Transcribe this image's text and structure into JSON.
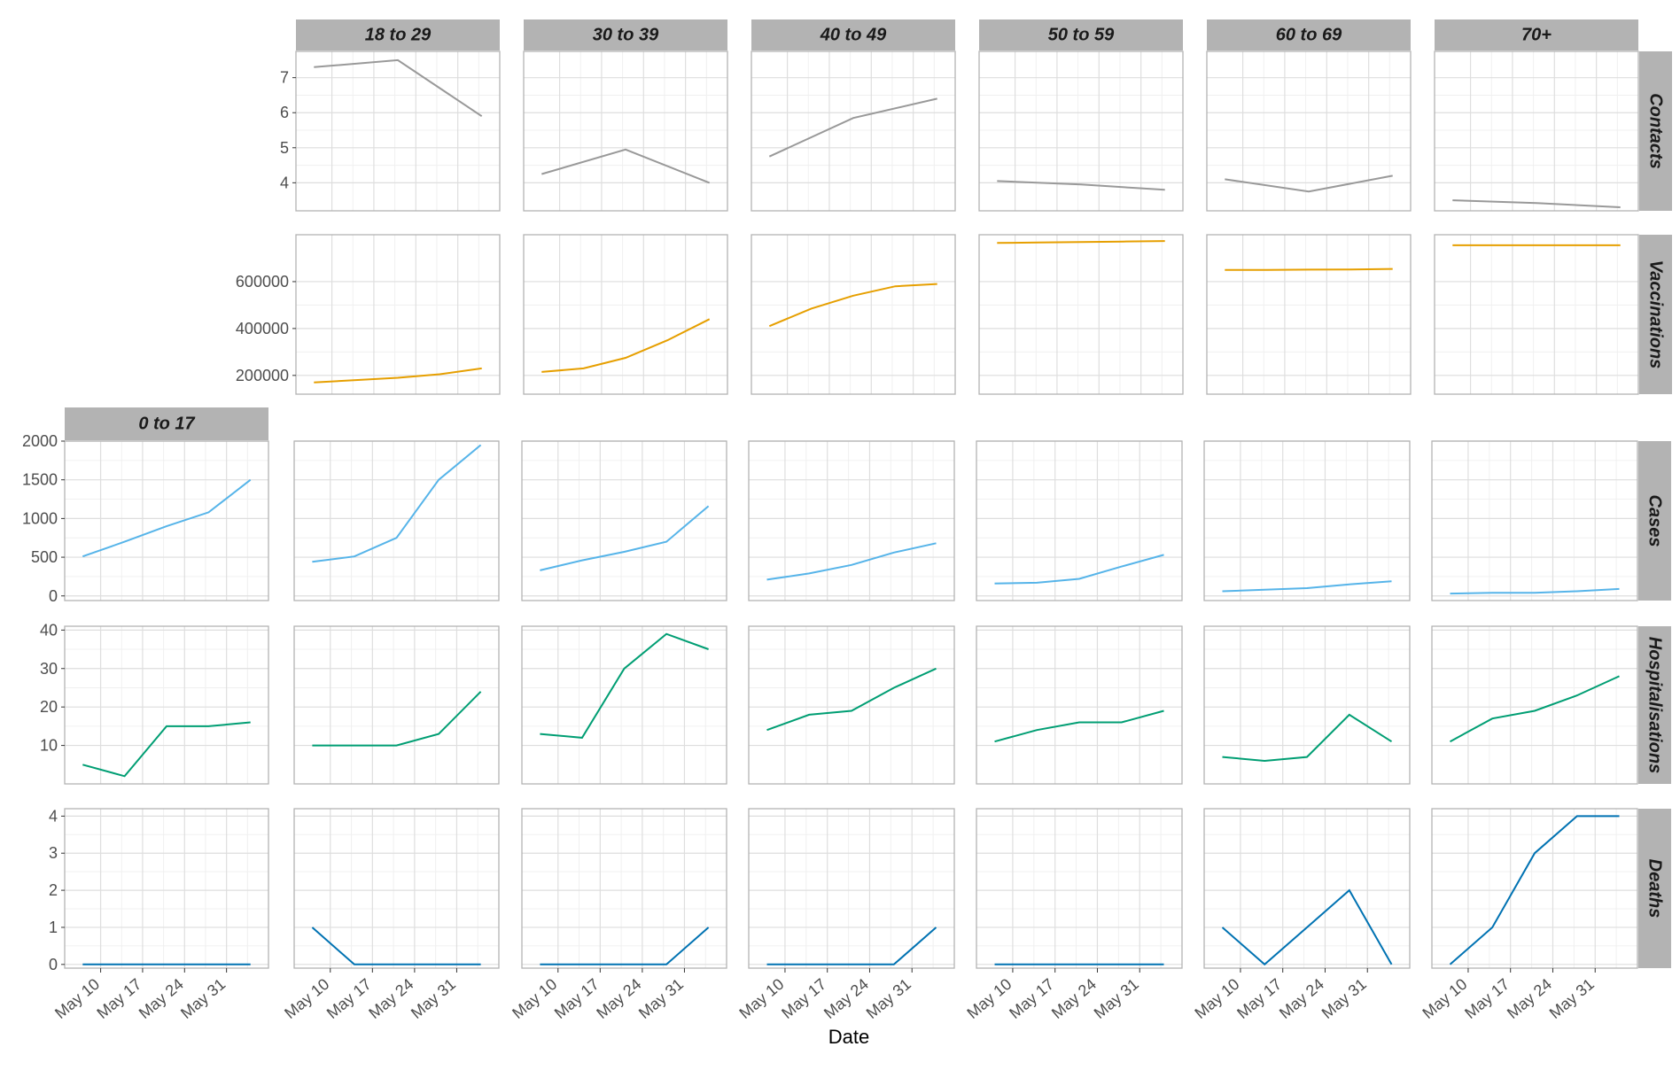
{
  "chart_data": {
    "type": "line",
    "xlabel": "Date",
    "x_dates": [
      "May 7",
      "May 14",
      "May 21",
      "May 28",
      "Jun 4"
    ],
    "x_ticks": [
      "May 10",
      "May 17",
      "May 24",
      "May 31"
    ],
    "age_groups": [
      "0 to 17",
      "18 to 29",
      "30 to 39",
      "40 to 49",
      "50 to 59",
      "60 to 69",
      "70+"
    ],
    "metrics": [
      {
        "name": "Contacts",
        "color": "#999999",
        "ylim": [
          3.2,
          7.75
        ],
        "ticks": [
          4,
          5,
          6,
          7
        ],
        "tick_labels": [
          "4",
          "5",
          "6",
          "7"
        ],
        "panels": [
          null,
          {
            "x": [
              0,
              14,
              28
            ],
            "y": [
              7.3,
              7.5,
              5.9
            ]
          },
          {
            "x": [
              0,
              14,
              28
            ],
            "y": [
              4.25,
              4.95,
              4.0
            ]
          },
          {
            "x": [
              0,
              14,
              28
            ],
            "y": [
              4.75,
              5.85,
              6.4
            ]
          },
          {
            "x": [
              0,
              14,
              28
            ],
            "y": [
              4.05,
              3.95,
              3.8
            ]
          },
          {
            "x": [
              0,
              14,
              28
            ],
            "y": [
              4.1,
              3.75,
              4.2
            ]
          },
          {
            "x": [
              0,
              14,
              28
            ],
            "y": [
              3.5,
              3.42,
              3.3
            ]
          }
        ]
      },
      {
        "name": "Vaccinations",
        "color": "#E69F00",
        "ylim": [
          120000,
          800000
        ],
        "ticks": [
          200000,
          400000,
          600000
        ],
        "tick_labels": [
          "200000",
          "400000",
          "600000"
        ],
        "panels": [
          null,
          {
            "x": [
              0,
              7,
              14,
              21,
              28
            ],
            "y": [
              170000,
              180000,
              190000,
              205000,
              230000
            ]
          },
          {
            "x": [
              0,
              7,
              14,
              21,
              28
            ],
            "y": [
              215000,
              230000,
              275000,
              350000,
              440000
            ]
          },
          {
            "x": [
              0,
              7,
              14,
              21,
              28
            ],
            "y": [
              410000,
              485000,
              540000,
              580000,
              590000
            ]
          },
          {
            "x": [
              0,
              7,
              14,
              21,
              28
            ],
            "y": [
              765000,
              767000,
              769000,
              771000,
              773000
            ]
          },
          {
            "x": [
              0,
              7,
              14,
              21,
              28
            ],
            "y": [
              650000,
              650000,
              651000,
              652000,
              654000
            ]
          },
          {
            "x": [
              0,
              7,
              14,
              21,
              28
            ],
            "y": [
              755000,
              755000,
              755000,
              755000,
              755000
            ]
          }
        ]
      },
      {
        "name": "Cases",
        "color": "#56B4E9",
        "ylim": [
          -60,
          2000
        ],
        "ticks": [
          0,
          500,
          1000,
          1500,
          2000
        ],
        "tick_labels": [
          "0",
          "500",
          "1000",
          "1500",
          "2000"
        ],
        "panels": [
          {
            "x": [
              0,
              7,
              14,
              21,
              28
            ],
            "y": [
              510,
              700,
              900,
              1080,
              1500
            ]
          },
          {
            "x": [
              0,
              7,
              14,
              21,
              28
            ],
            "y": [
              440,
              510,
              750,
              1500,
              1950
            ]
          },
          {
            "x": [
              0,
              7,
              14,
              21,
              28
            ],
            "y": [
              330,
              460,
              570,
              700,
              1160
            ]
          },
          {
            "x": [
              0,
              7,
              14,
              21,
              28
            ],
            "y": [
              210,
              290,
              400,
              560,
              680
            ]
          },
          {
            "x": [
              0,
              7,
              14,
              21,
              28
            ],
            "y": [
              160,
              170,
              220,
              380,
              530
            ]
          },
          {
            "x": [
              0,
              7,
              14,
              21,
              28
            ],
            "y": [
              60,
              80,
              100,
              150,
              190
            ]
          },
          {
            "x": [
              0,
              7,
              14,
              21,
              28
            ],
            "y": [
              30,
              40,
              40,
              60,
              90
            ]
          }
        ]
      },
      {
        "name": "Hospitalisations",
        "color": "#009E73",
        "ylim": [
          0,
          41
        ],
        "ticks": [
          10,
          20,
          30,
          40
        ],
        "tick_labels": [
          "10",
          "20",
          "30",
          "40"
        ],
        "panels": [
          {
            "x": [
              0,
              7,
              14,
              21,
              28
            ],
            "y": [
              5,
              2,
              15,
              15,
              16
            ]
          },
          {
            "x": [
              0,
              7,
              14,
              21,
              28
            ],
            "y": [
              10,
              10,
              10,
              13,
              24
            ]
          },
          {
            "x": [
              0,
              7,
              14,
              21,
              28
            ],
            "y": [
              13,
              12,
              30,
              39,
              35
            ]
          },
          {
            "x": [
              0,
              7,
              14,
              21,
              28
            ],
            "y": [
              14,
              18,
              19,
              25,
              30
            ]
          },
          {
            "x": [
              0,
              7,
              14,
              21,
              28
            ],
            "y": [
              11,
              14,
              16,
              16,
              19
            ]
          },
          {
            "x": [
              0,
              7,
              14,
              21,
              28
            ],
            "y": [
              7,
              6,
              7,
              18,
              11
            ]
          },
          {
            "x": [
              0,
              7,
              14,
              21,
              28
            ],
            "y": [
              11,
              17,
              19,
              23,
              28
            ]
          }
        ]
      },
      {
        "name": "Deaths",
        "color": "#0072B2",
        "ylim": [
          -0.1,
          4.2
        ],
        "ticks": [
          0,
          1,
          2,
          3,
          4
        ],
        "tick_labels": [
          "0",
          "1",
          "2",
          "3",
          "4"
        ],
        "panels": [
          {
            "x": [
              0,
              7,
              14,
              21,
              28
            ],
            "y": [
              0,
              0,
              0,
              0,
              0
            ]
          },
          {
            "x": [
              0,
              7,
              14,
              21,
              28
            ],
            "y": [
              1,
              0,
              0,
              0,
              0
            ]
          },
          {
            "x": [
              0,
              7,
              14,
              21,
              28
            ],
            "y": [
              0,
              0,
              0,
              0,
              1
            ]
          },
          {
            "x": [
              0,
              7,
              14,
              21,
              28
            ],
            "y": [
              0,
              0,
              0,
              0,
              1
            ]
          },
          {
            "x": [
              0,
              7,
              14,
              21,
              28
            ],
            "y": [
              0,
              0,
              0,
              0,
              0
            ]
          },
          {
            "x": [
              0,
              7,
              14,
              21,
              28
            ],
            "y": [
              1,
              0,
              1,
              2,
              0
            ]
          },
          {
            "x": [
              0,
              7,
              14,
              21,
              28
            ],
            "y": [
              0,
              1,
              3,
              4,
              4
            ]
          }
        ]
      }
    ],
    "panel_border_color": "#b3b3b3",
    "strip_fill_color": "#b3b3b3",
    "grid_major_color": "#dedede",
    "grid_minor_color": "#f0f0f0"
  }
}
